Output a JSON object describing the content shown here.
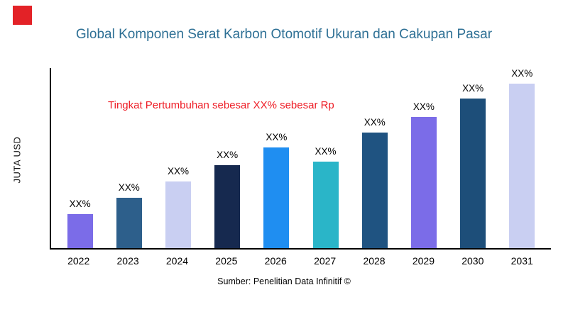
{
  "brand": {
    "logo_color": "#e32227"
  },
  "chart_data": {
    "type": "bar",
    "title": "Global Komponen Serat Karbon Otomotif Ukuran dan Cakupan Pasar",
    "ylabel": "JUTA USD",
    "xlabel": "",
    "annotation": "Tingkat Pertumbuhan sebesar XX% sebesar Rp",
    "source": "Sumber: Penelitian Data Infinitif ©",
    "categories": [
      "2022",
      "2023",
      "2024",
      "2025",
      "2026",
      "2027",
      "2028",
      "2029",
      "2030",
      "2031"
    ],
    "values": [
      19,
      28,
      37,
      46,
      56,
      48,
      64,
      73,
      83,
      92
    ],
    "bar_labels": [
      "XX%",
      "XX%",
      "XX%",
      "XX%",
      "XX%",
      "XX%",
      "XX%",
      "XX%",
      "XX%",
      "XX%"
    ],
    "bar_colors": [
      "#7b6ce8",
      "#2d5f8b",
      "#c9cff2",
      "#16294f",
      "#1f8ef1",
      "#2ab5c8",
      "#1f5381",
      "#7b6ce8",
      "#1d4e79",
      "#c9cff2"
    ],
    "ylim": [
      0,
      100
    ],
    "grid": false,
    "legend": false
  }
}
